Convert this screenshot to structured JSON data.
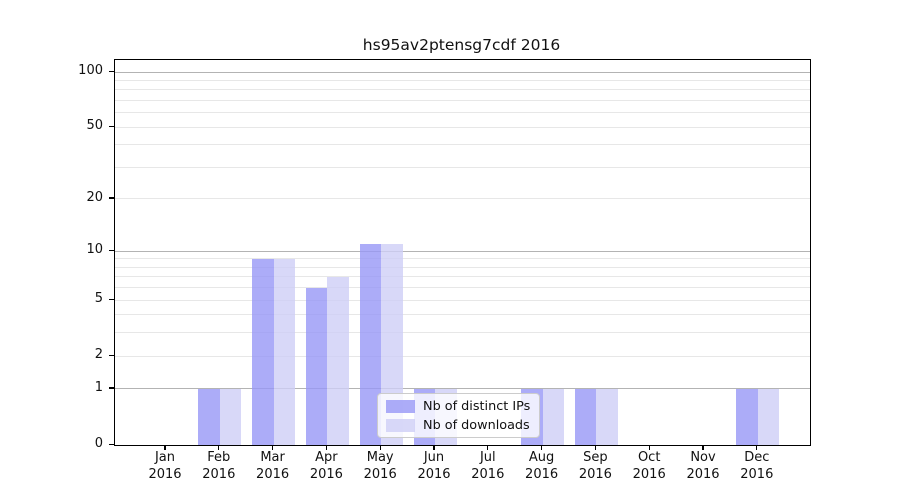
{
  "title": "hs95av2ptensg7cdf 2016",
  "colors": {
    "bar_ips": "rgba(151,151,246,0.8)",
    "bar_downloads": "rgba(206,206,246,0.8)",
    "grid_major": "#b3b3b3",
    "grid_minor": "#e7e7e7",
    "axis": "#000000"
  },
  "legend": {
    "items": [
      {
        "label": "Nb of distinct IPs",
        "color_key": "bar_ips"
      },
      {
        "label": "Nb of downloads",
        "color_key": "bar_downloads"
      }
    ]
  },
  "chart_data": {
    "type": "bar",
    "title": "hs95av2ptensg7cdf 2016",
    "yscale": "log1p",
    "year": "2016",
    "categories": [
      "Jan",
      "Feb",
      "Mar",
      "Apr",
      "May",
      "Jun",
      "Jul",
      "Aug",
      "Sep",
      "Oct",
      "Nov",
      "Dec"
    ],
    "series": [
      {
        "name": "Nb of distinct IPs",
        "values": [
          0,
          1,
          9,
          6,
          11,
          1,
          0,
          1,
          1,
          0,
          0,
          1
        ]
      },
      {
        "name": "Nb of downloads",
        "values": [
          0,
          1,
          9,
          7,
          11,
          1,
          0,
          1,
          1,
          0,
          0,
          1
        ]
      }
    ],
    "yticks": [
      0,
      1,
      2,
      5,
      10,
      20,
      50,
      100
    ],
    "grid_major_values": [
      1,
      10,
      100
    ],
    "grid_minor_values": [
      2,
      3,
      4,
      5,
      6,
      7,
      8,
      9,
      20,
      30,
      40,
      50,
      60,
      70,
      80,
      90
    ],
    "ylim": [
      0,
      100
    ],
    "grid": "on",
    "legend_position": "inside-bottom-center"
  }
}
